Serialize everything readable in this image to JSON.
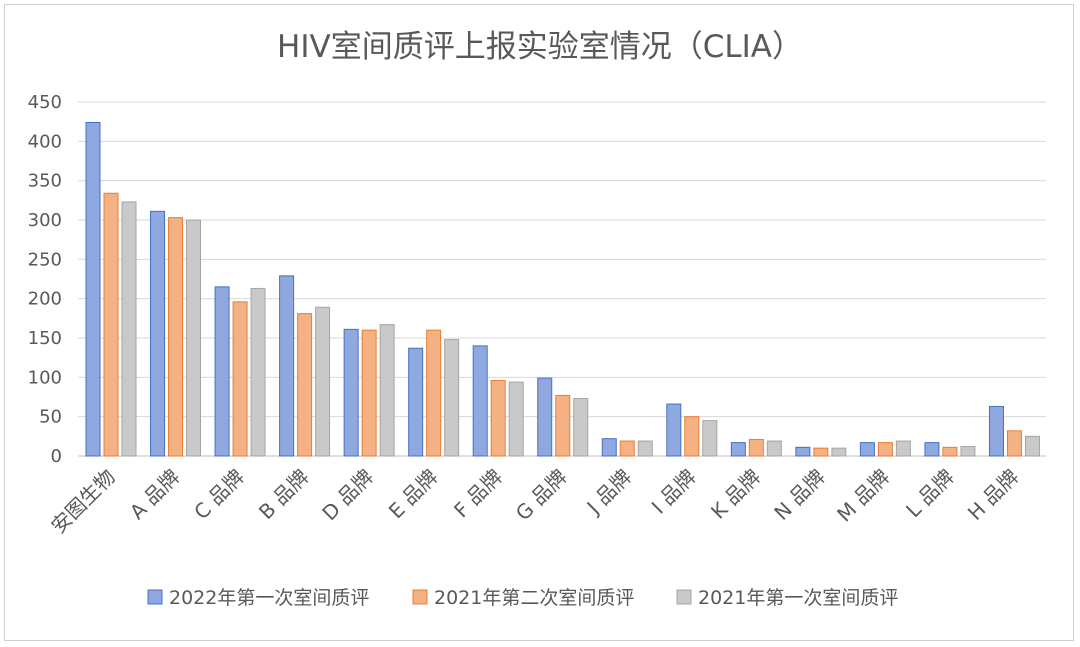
{
  "chart_data": {
    "type": "bar",
    "title": "HIV室间质评上报实验室情况（CLIA）",
    "categories": [
      "安图生物",
      "A 品牌",
      "C 品牌",
      "B 品牌",
      "D 品牌",
      "E 品牌",
      "F 品牌",
      "G 品牌",
      "J 品牌",
      "I 品牌",
      "K 品牌",
      "N 品牌",
      "M 品牌",
      "L 品牌",
      "H 品牌"
    ],
    "series": [
      {
        "name": "2022年第一次室间质评",
        "color": "#8FA8E0",
        "stroke": "#4472C4",
        "values": [
          424,
          311,
          215,
          229,
          161,
          137,
          140,
          99,
          22,
          66,
          17,
          11,
          17,
          17,
          63
        ]
      },
      {
        "name": "2021年第二次室间质评",
        "color": "#F4B183",
        "stroke": "#ED7D31",
        "values": [
          334,
          303,
          196,
          181,
          160,
          160,
          96,
          77,
          19,
          50,
          21,
          10,
          17,
          11,
          32
        ]
      },
      {
        "name": "2021年第一次室间质评",
        "color": "#C9C9C9",
        "stroke": "#A5A5A5",
        "values": [
          323,
          300,
          213,
          189,
          167,
          148,
          94,
          73,
          19,
          45,
          19,
          10,
          19,
          12,
          25
        ]
      }
    ],
    "yticks": [
      0,
      50,
      100,
      150,
      200,
      250,
      300,
      350,
      400,
      450
    ],
    "ylim": [
      0,
      450
    ],
    "grid": true,
    "legend_position": "bottom"
  }
}
